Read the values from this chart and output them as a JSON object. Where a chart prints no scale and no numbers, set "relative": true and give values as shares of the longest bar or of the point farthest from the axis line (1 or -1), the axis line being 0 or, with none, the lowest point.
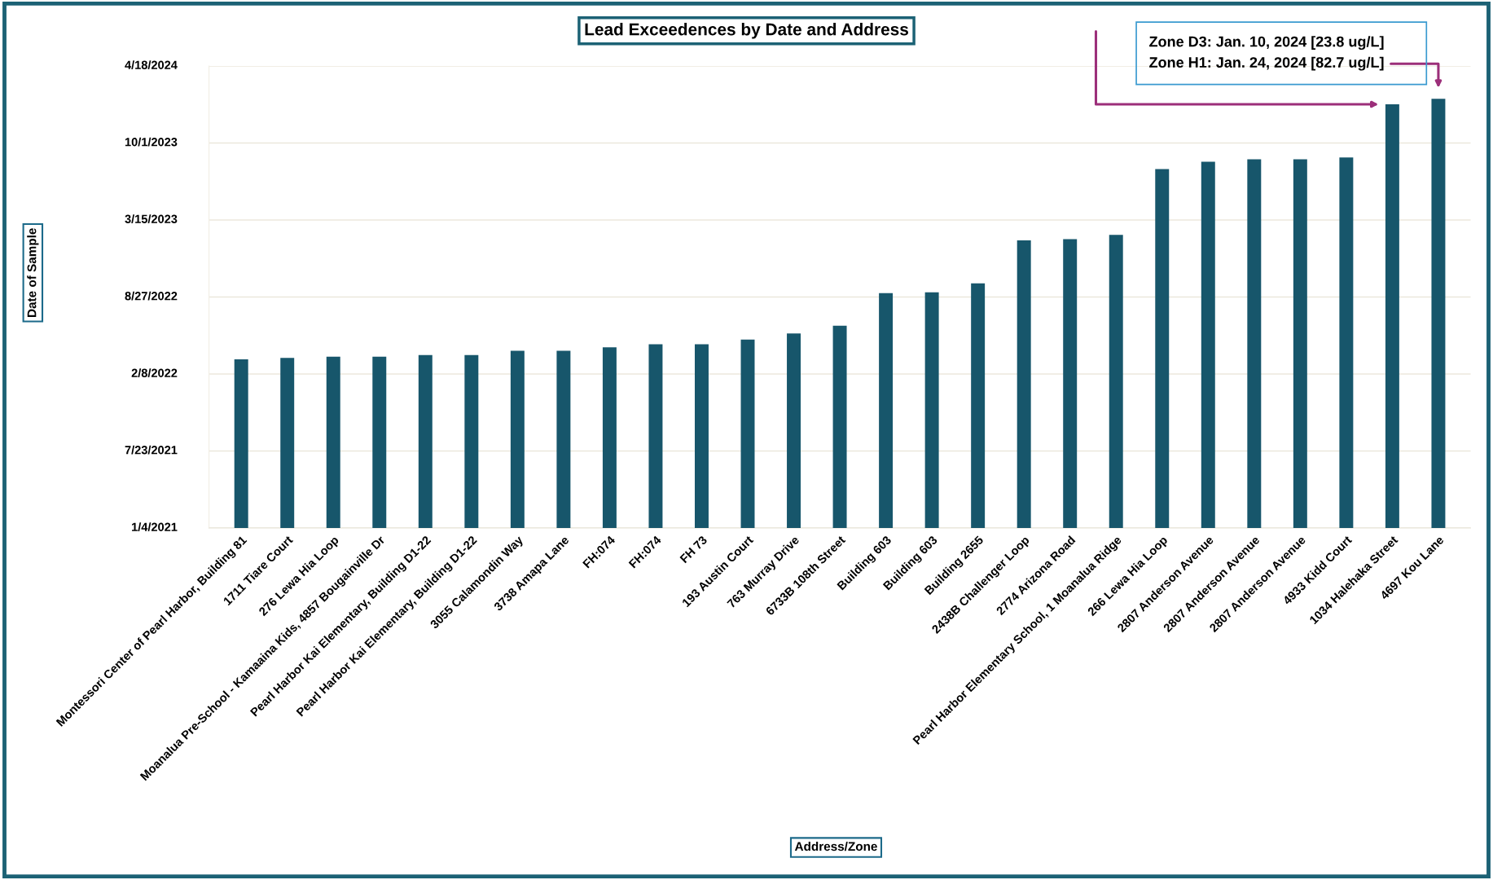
{
  "chart_data": {
    "type": "bar",
    "title": "Lead Exceedences by Date and Address",
    "xlabel": "Address/Zone",
    "ylabel": "Date of Sample",
    "categories": [
      "Montessori Center of Pearl Harbor, Building 81",
      "1711 Tiare Court",
      "276 Lewa Hia Loop",
      "Moanalua Pre-School - Kamaaina Kids, 4857 Bougainville Dr",
      "Pearl Harbor Kai Elementary, Building D1-22",
      "Pearl Harbor Kai Elementary, Building D1-22",
      "3055 Calamondin Way",
      "3738 Amapa Lane",
      "FH:074",
      "FH:074",
      "FH 73",
      "193 Austin Court",
      "763 Murray Drive",
      "6733B 108th Street",
      "Building 603",
      "Building 603",
      "Building 2655",
      "2438B Challenger Loop",
      "2774 Arizona Road",
      "Pearl Harbor Elementary School, 1 Moanalua Ridge",
      "266 Lewa Hia Loop",
      "2807 Anderson Avenue",
      "2807 Anderson Avenue",
      "2807 Anderson Avenue",
      "4933 Kidd Court",
      "1034 Halehaka Street",
      "4697 Kou Lane"
    ],
    "values": [
      0.393,
      0.396,
      0.399,
      0.399,
      0.403,
      0.403,
      0.413,
      0.413,
      0.421,
      0.428,
      0.428,
      0.439,
      0.453,
      0.471,
      0.547,
      0.549,
      0.57,
      0.67,
      0.673,
      0.683,
      0.836,
      0.853,
      0.859,
      0.859,
      0.863,
      0.987,
      1
    ],
    "relative": true,
    "color": "#17566b",
    "grid": "y",
    "annotations": [
      "1/4/2021",
      "7/23/2021",
      "2/8/2022",
      "8/27/2022",
      "3/15/2023",
      "10/1/2023",
      "4/18/2024",
      "Zone D3: Jan. 10, 2024 [23.8 ug/L]",
      "Zone H1: Jan. 24, 2024 [82.7 ug/L]"
    ]
  }
}
